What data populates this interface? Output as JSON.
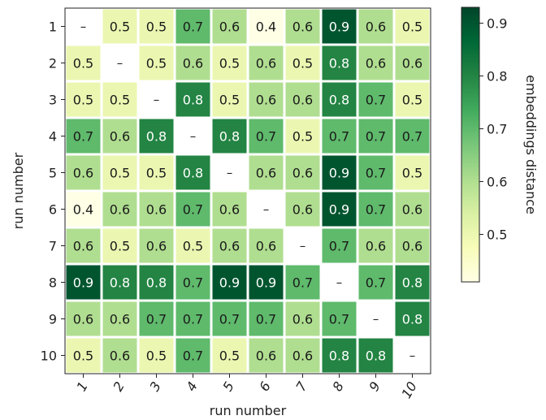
{
  "chart_data": {
    "type": "heatmap",
    "xlabel": "run number",
    "ylabel": "run number",
    "x_categories": [
      "1",
      "2",
      "3",
      "4",
      "5",
      "6",
      "7",
      "8",
      "9",
      "10"
    ],
    "y_categories": [
      "1",
      "2",
      "3",
      "4",
      "5",
      "6",
      "7",
      "8",
      "9",
      "10"
    ],
    "values": [
      [
        null,
        0.5,
        0.5,
        0.7,
        0.6,
        0.4,
        0.6,
        0.9,
        0.6,
        0.5
      ],
      [
        0.5,
        null,
        0.5,
        0.6,
        0.5,
        0.6,
        0.5,
        0.8,
        0.6,
        0.6
      ],
      [
        0.5,
        0.5,
        null,
        0.8,
        0.5,
        0.6,
        0.6,
        0.8,
        0.7,
        0.5
      ],
      [
        0.7,
        0.6,
        0.8,
        null,
        0.8,
        0.7,
        0.5,
        0.7,
        0.7,
        0.7
      ],
      [
        0.6,
        0.5,
        0.5,
        0.8,
        null,
        0.6,
        0.6,
        0.9,
        0.7,
        0.5
      ],
      [
        0.4,
        0.6,
        0.6,
        0.7,
        0.6,
        null,
        0.6,
        0.9,
        0.7,
        0.6
      ],
      [
        0.6,
        0.5,
        0.6,
        0.5,
        0.6,
        0.6,
        null,
        0.7,
        0.6,
        0.6
      ],
      [
        0.9,
        0.8,
        0.8,
        0.7,
        0.9,
        0.9,
        0.7,
        null,
        0.7,
        0.8
      ],
      [
        0.6,
        0.6,
        0.7,
        0.7,
        0.7,
        0.7,
        0.6,
        0.7,
        null,
        0.8
      ],
      [
        0.5,
        0.6,
        0.5,
        0.7,
        0.5,
        0.6,
        0.6,
        0.8,
        0.8,
        null
      ]
    ],
    "missing_label": "–",
    "colormap": "YlGn",
    "colorbar": {
      "label": "embeddings distance",
      "range": [
        0.41,
        0.93
      ],
      "ticks": [
        0.5,
        0.6,
        0.7,
        0.8,
        0.9
      ]
    },
    "colors": [
      "#ffffe5",
      "#f7fcb9",
      "#d9f0a3",
      "#addd8e",
      "#78c679",
      "#41ab5d",
      "#238443",
      "#006837",
      "#004529"
    ],
    "grid": false
  }
}
